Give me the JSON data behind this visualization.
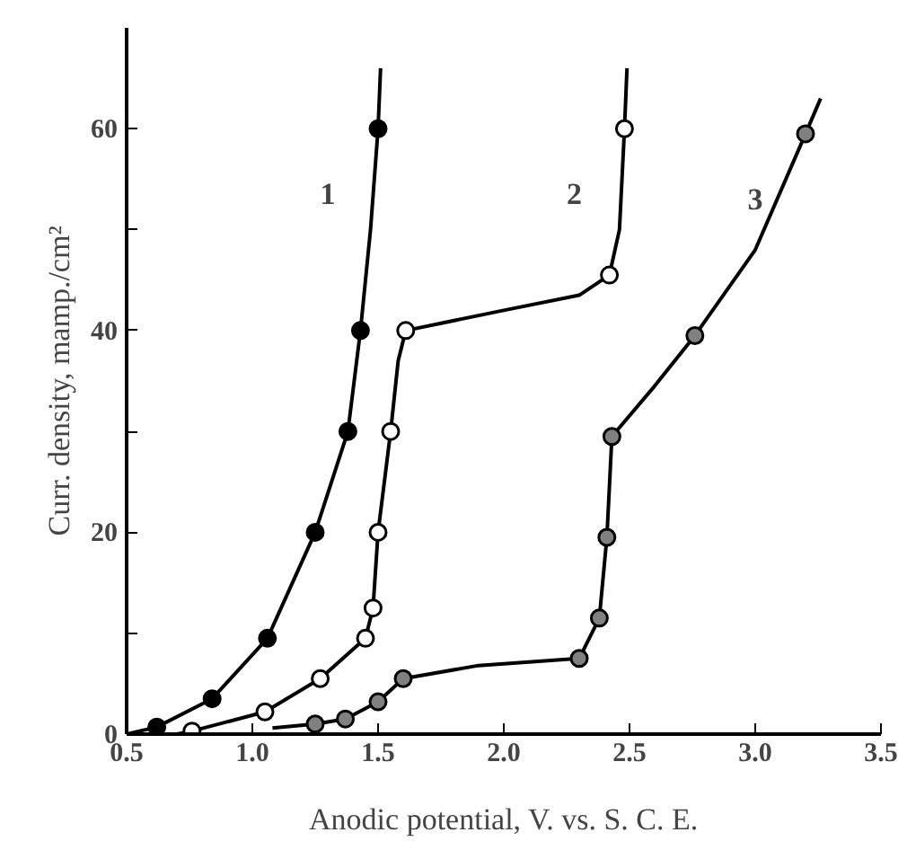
{
  "chart_data": {
    "type": "line",
    "xlabel": "Anodic potential, V. vs. S. C. E.",
    "ylabel": "Curr. density, mamp./cm²",
    "xlim": [
      0.5,
      3.5
    ],
    "ylim": [
      0,
      70
    ],
    "xticks": [
      0.5,
      {
        "value": 1,
        "label": "1.0"
      },
      1.5,
      {
        "value": 2,
        "label": "2.0"
      },
      2.5,
      {
        "value": 3,
        "label": "3.0"
      },
      3.5
    ],
    "yticks": [
      0,
      {
        "value": 10,
        "label": null
      },
      20,
      {
        "value": 30,
        "label": null
      },
      40,
      {
        "value": 50,
        "label": null
      },
      60
    ],
    "grid": false,
    "line_style": "solid",
    "series": [
      {
        "color": "#000000",
        "x": [
          0.5,
          0.62,
          0.84,
          1.06,
          1.25,
          1.38,
          1.43,
          1.47,
          1.5,
          1.51
        ],
        "values": [
          0,
          0.7,
          3.5,
          9.5,
          20,
          30,
          40,
          50,
          60,
          66
        ]
      },
      {
        "color": "#000000",
        "x": [
          0.7,
          0.76,
          1.05,
          1.27,
          1.45,
          1.48,
          1.5,
          1.53,
          1.55,
          1.58,
          1.61,
          2.0,
          2.3,
          2.42,
          2.46,
          2.48,
          2.49
        ],
        "values": [
          0,
          0.3,
          2.2,
          5.5,
          9.5,
          12.5,
          20,
          26,
          30,
          37,
          40,
          42,
          43.5,
          45.5,
          50,
          60,
          66
        ]
      },
      {
        "color": "#000000",
        "x": [
          1.08,
          1.25,
          1.37,
          1.5,
          1.6,
          1.9,
          2.3,
          2.38,
          2.41,
          2.43,
          2.6,
          2.76,
          3.0,
          3.2,
          3.26
        ],
        "values": [
          0.6,
          1,
          1.5,
          3.2,
          5.5,
          6.8,
          7.5,
          11.5,
          19.5,
          29.5,
          34.5,
          39.5,
          48,
          59.5,
          63
        ]
      },
      {
        "type": "scatter",
        "name": "1",
        "marker": "circle",
        "color": "#000000",
        "x": [
          0.62,
          0.84,
          1.06,
          1.25,
          1.38,
          1.43,
          1.5
        ],
        "values": [
          0.7,
          3.5,
          9.5,
          20,
          30,
          40,
          60
        ]
      },
      {
        "type": "scatter",
        "name": "2",
        "marker": "circle",
        "color": "#ffffff",
        "x": [
          0.76,
          1.05,
          1.27,
          1.45,
          1.48,
          1.5,
          1.55,
          1.61,
          2.42,
          2.48
        ],
        "values": [
          0.3,
          2.2,
          5.5,
          9.5,
          12.5,
          20,
          30,
          40,
          45.5,
          60
        ]
      },
      {
        "type": "scatter",
        "name": "3",
        "marker": "circle",
        "color": "#808080",
        "x": [
          1.25,
          1.37,
          1.5,
          1.6,
          2.3,
          2.38,
          2.41,
          2.43,
          2.76,
          3.2
        ],
        "values": [
          1,
          1.5,
          3.2,
          5.5,
          7.5,
          11.5,
          19.5,
          29.5,
          39.5,
          59.5
        ]
      }
    ]
  }
}
